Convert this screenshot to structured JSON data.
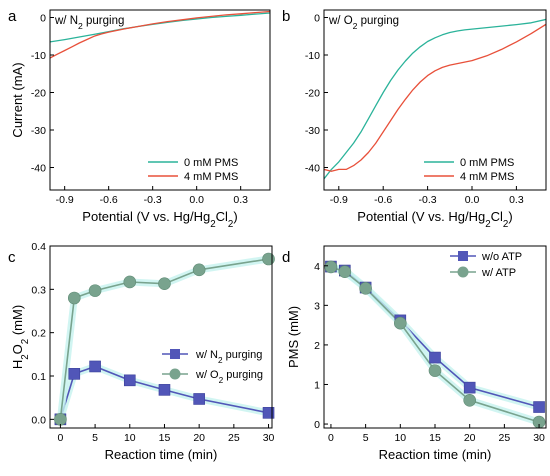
{
  "colors": {
    "teal": "#2bb39a",
    "red": "#e8503a",
    "blue": "#5156b8",
    "gray_green": "#79a38e",
    "glow": "#c6f2ef"
  },
  "chart_data": [
    {
      "panel": "a",
      "type": "line",
      "annotation": "w/ N₂ purging",
      "xlabel": "Potential (V vs. Hg/Hg₂Cl₂)",
      "ylabel": "Current (mA)",
      "xlim": [
        -1.0,
        0.5
      ],
      "ylim": [
        -46,
        2
      ],
      "xticks": [
        -0.9,
        -0.6,
        -0.3,
        0.0,
        0.3
      ],
      "xtick_labels": [
        "-0.9",
        "-0.6",
        "-0.3",
        "0.0",
        "0.3"
      ],
      "yticks": [
        0,
        -10,
        -20,
        -30,
        -40
      ],
      "ytick_labels": [
        "0",
        "-10",
        "-20",
        "-30",
        "-40"
      ],
      "legend_position": "bottom-right",
      "series": [
        {
          "name": "0 mM PMS",
          "color": "#2bb39a",
          "x": [
            -1.0,
            -0.9,
            -0.8,
            -0.7,
            -0.6,
            -0.5,
            -0.4,
            -0.3,
            -0.2,
            -0.1,
            0.0,
            0.1,
            0.2,
            0.3,
            0.4,
            0.5
          ],
          "y": [
            -6.5,
            -5.9,
            -5.2,
            -4.5,
            -3.8,
            -3.0,
            -2.4,
            -1.8,
            -1.3,
            -0.8,
            -0.4,
            0.0,
            0.3,
            0.6,
            0.9,
            1.2
          ]
        },
        {
          "name": "4 mM PMS",
          "color": "#e8503a",
          "x": [
            -1.0,
            -0.95,
            -0.9,
            -0.85,
            -0.8,
            -0.75,
            -0.7,
            -0.65,
            -0.6,
            -0.5,
            -0.4,
            -0.3,
            -0.2,
            -0.1,
            0.0,
            0.1,
            0.2,
            0.3,
            0.4,
            0.5
          ],
          "y": [
            -10.8,
            -9.8,
            -8.8,
            -7.8,
            -6.8,
            -5.9,
            -5.0,
            -4.4,
            -3.9,
            -3.1,
            -2.4,
            -1.7,
            -1.1,
            -0.6,
            -0.1,
            0.3,
            0.7,
            1.0,
            1.3,
            1.6
          ]
        }
      ]
    },
    {
      "panel": "b",
      "type": "line",
      "annotation": "w/ O₂ purging",
      "xlabel": "Potential (V vs. Hg/Hg₂Cl₂)",
      "ylabel": "",
      "xlim": [
        -1.0,
        0.5
      ],
      "ylim": [
        -46,
        2
      ],
      "xticks": [
        -0.9,
        -0.6,
        -0.3,
        0.0,
        0.3
      ],
      "xtick_labels": [
        "-0.9",
        "-0.6",
        "-0.3",
        "0.0",
        "0.3"
      ],
      "yticks": [
        0,
        -10,
        -20,
        -30,
        -40
      ],
      "ytick_labels": [
        "0",
        "-10",
        "-20",
        "-30",
        "-40"
      ],
      "legend_position": "bottom-right",
      "series": [
        {
          "name": "0 mM PMS",
          "color": "#2bb39a",
          "x": [
            -1.0,
            -0.95,
            -0.9,
            -0.85,
            -0.8,
            -0.75,
            -0.7,
            -0.65,
            -0.6,
            -0.55,
            -0.5,
            -0.45,
            -0.4,
            -0.35,
            -0.3,
            -0.25,
            -0.2,
            -0.15,
            -0.1,
            -0.05,
            0.0,
            0.1,
            0.2,
            0.3,
            0.4,
            0.5
          ],
          "y": [
            -43,
            -40.5,
            -38.5,
            -36,
            -33.5,
            -30.5,
            -27,
            -23.5,
            -20,
            -16.8,
            -14,
            -11.6,
            -9.5,
            -7.8,
            -6.4,
            -5.4,
            -4.6,
            -4.0,
            -3.6,
            -3.3,
            -3.1,
            -2.7,
            -2.3,
            -1.9,
            -1.4,
            -0.5
          ]
        },
        {
          "name": "4 mM PMS",
          "color": "#e8503a",
          "x": [
            -1.0,
            -0.95,
            -0.9,
            -0.85,
            -0.8,
            -0.75,
            -0.7,
            -0.65,
            -0.6,
            -0.55,
            -0.5,
            -0.45,
            -0.4,
            -0.35,
            -0.3,
            -0.25,
            -0.2,
            -0.15,
            -0.1,
            -0.05,
            0.0,
            0.1,
            0.2,
            0.3,
            0.4,
            0.5
          ],
          "y": [
            -40.5,
            -41,
            -40.5,
            -40.5,
            -39.5,
            -38,
            -36,
            -33.5,
            -30.5,
            -27.5,
            -24.5,
            -21.8,
            -19.3,
            -17.2,
            -15.5,
            -14.2,
            -13.3,
            -12.7,
            -12.3,
            -11.9,
            -11.5,
            -10.2,
            -8.5,
            -6.5,
            -4.3,
            -1.8
          ]
        }
      ]
    },
    {
      "panel": "c",
      "type": "line",
      "xlabel": "Reaction time (min)",
      "ylabel": "H₂O₂ (mM)",
      "xlim": [
        -1.5,
        30.5
      ],
      "ylim": [
        -0.02,
        0.4
      ],
      "xticks": [
        0,
        5,
        10,
        15,
        20,
        25,
        30
      ],
      "xtick_labels": [
        "0",
        "5",
        "10",
        "15",
        "20",
        "25",
        "30"
      ],
      "yticks": [
        0.0,
        0.1,
        0.2,
        0.3,
        0.4
      ],
      "ytick_labels": [
        "0.0",
        "0.1",
        "0.2",
        "0.3",
        "0.4"
      ],
      "legend_position": "bottom-right",
      "series": [
        {
          "name": "w/ N₂ purging",
          "color": "#5156b8",
          "marker": "square",
          "x": [
            0,
            2,
            5,
            10,
            15,
            20,
            30
          ],
          "y": [
            0.0,
            0.105,
            0.122,
            0.09,
            0.068,
            0.047,
            0.015
          ]
        },
        {
          "name": "w/ O₂ purging",
          "color": "#79a38e",
          "marker": "circle",
          "x": [
            0,
            2,
            5,
            10,
            15,
            20,
            30
          ],
          "y": [
            0.0,
            0.28,
            0.297,
            0.317,
            0.313,
            0.345,
            0.37
          ]
        }
      ]
    },
    {
      "panel": "d",
      "type": "line",
      "xlabel": "Reaction time (min)",
      "ylabel": "PMS (mM)",
      "xlim": [
        -1.0,
        31.0
      ],
      "ylim": [
        -0.1,
        4.5
      ],
      "xticks": [
        0,
        5,
        10,
        15,
        20,
        25,
        30
      ],
      "xtick_labels": [
        "0",
        "5",
        "10",
        "15",
        "20",
        "25",
        "30"
      ],
      "yticks": [
        0,
        1,
        2,
        3,
        4
      ],
      "ytick_labels": [
        "0",
        "1",
        "2",
        "3",
        "4"
      ],
      "legend_position": "top-right",
      "series": [
        {
          "name": "w/o ATP",
          "color": "#5156b8",
          "marker": "square",
          "x": [
            0,
            2,
            5,
            10,
            15,
            20,
            30
          ],
          "y": [
            3.98,
            3.88,
            3.45,
            2.62,
            1.68,
            0.92,
            0.43
          ]
        },
        {
          "name": "w/ ATP",
          "color": "#79a38e",
          "marker": "circle",
          "x": [
            0,
            2,
            5,
            10,
            15,
            20,
            30
          ],
          "y": [
            3.97,
            3.85,
            3.43,
            2.55,
            1.35,
            0.6,
            0.05
          ]
        }
      ]
    }
  ],
  "panel_labels": [
    "a",
    "b",
    "c",
    "d"
  ]
}
